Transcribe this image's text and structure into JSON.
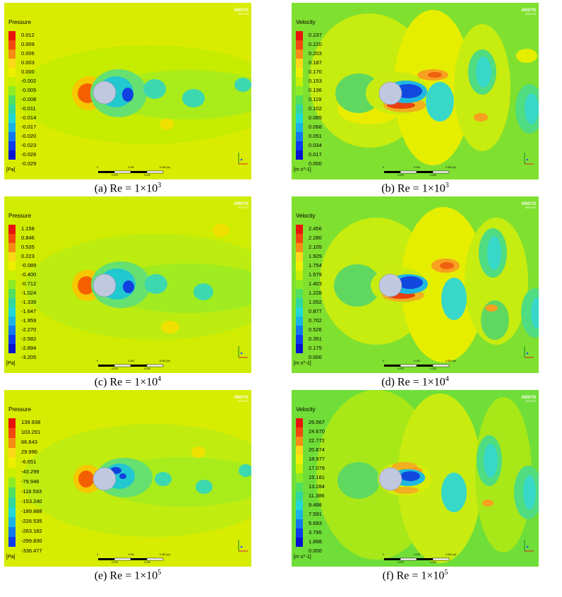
{
  "brand": {
    "name": "ANSYS",
    "version": "2019 R3"
  },
  "panels": [
    {
      "id": "a",
      "field": "pressure",
      "legend_title": "Pressure",
      "unit": "[Pa]",
      "ticks": [
        "0.012",
        "0.009",
        "0.006",
        "0.003",
        "0.000",
        "-0.002",
        "-0.005",
        "-0.008",
        "-0.011",
        "-0.014",
        "-0.017",
        "-0.020",
        "-0.023",
        "-0.026",
        "-0.029"
      ],
      "caption_prefix": "(a) Re = 1×10",
      "caption_exp": "3",
      "scalebar": {
        "top": [
          "0",
          "0.150",
          "0.300 (m)"
        ],
        "bottom": [
          "0.075",
          "0.225"
        ]
      }
    },
    {
      "id": "b",
      "field": "velocity",
      "legend_title": "Velocity",
      "unit": "[m s^-1]",
      "ticks": [
        "0.237",
        "0.220",
        "0.203",
        "0.187",
        "0.170",
        "0.153",
        "0.136",
        "0.119",
        "0.102",
        "0.085",
        "0.068",
        "0.051",
        "0.034",
        "0.017",
        "0.000"
      ],
      "caption_prefix": "(b) Re = 1×10",
      "caption_exp": "3",
      "scalebar": {
        "top": [
          "0",
          "0.150",
          "0.300 (m)"
        ],
        "bottom": [
          "0.075",
          "0.225"
        ]
      }
    },
    {
      "id": "c",
      "field": "pressure",
      "legend_title": "Pressure",
      "unit": "[Pa]",
      "ticks": [
        "1.158",
        "0.846",
        "0.535",
        "0.223",
        "-0.089",
        "-0.400",
        "-0.712",
        "-1.024",
        "-1.335",
        "-1.647",
        "-1.959",
        "-2.270",
        "-2.582",
        "-2.894",
        "-3.205"
      ],
      "caption_prefix": "(c) Re = 1×10",
      "caption_exp": "4",
      "scalebar": {
        "top": [
          "0",
          "0.150",
          "0.300 (m)"
        ],
        "bottom": [
          "0.075",
          "0.225"
        ]
      }
    },
    {
      "id": "d",
      "field": "velocity",
      "legend_title": "Velocity",
      "unit": "[m s^-1]",
      "ticks": [
        "2.456",
        "2.280",
        "2.105",
        "1.929",
        "1.754",
        "1.579",
        "1.403",
        "1.228",
        "1.052",
        "0.877",
        "0.702",
        "0.526",
        "0.351",
        "0.175",
        "0.000"
      ],
      "caption_prefix": "(d) Re = 1×10",
      "caption_exp": "4",
      "scalebar": {
        "top": [
          "0",
          "0.150",
          "0.300 (m)"
        ],
        "bottom": [
          "0.075",
          "0.225"
        ]
      }
    },
    {
      "id": "e",
      "field": "pressure",
      "legend_title": "Pressure",
      "unit": "[Pa]",
      "ticks": [
        "139.938",
        "103.291",
        "66.643",
        "29.996",
        "-6.651",
        "-43.299",
        "-79.946",
        "-116.593",
        "-153.240",
        "-189.888",
        "-226.535",
        "-263.182",
        "-299.830",
        "-336.477"
      ],
      "caption_prefix": "(e) Re = 1×10",
      "caption_exp": "5",
      "scalebar": {
        "top": [
          "0",
          "0.150",
          "0.300 (m)"
        ],
        "bottom": [
          "0.075",
          "0.225"
        ]
      }
    },
    {
      "id": "f",
      "field": "velocity",
      "legend_title": "Velocity",
      "unit": "[m s^-1]",
      "ticks": [
        "26.567",
        "24.670",
        "22.772",
        "20.874",
        "18.977",
        "17.079",
        "15.181",
        "13.284",
        "11.386",
        "9.488",
        "7.591",
        "5.693",
        "3.795",
        "1.898",
        "0.000"
      ],
      "caption_prefix": "(f) Re = 1×10",
      "caption_exp": "5",
      "scalebar": {
        "top": [
          "0",
          "0.150",
          "0.300 (m)"
        ],
        "bottom": [
          "0.075",
          "0.225"
        ]
      }
    }
  ]
}
